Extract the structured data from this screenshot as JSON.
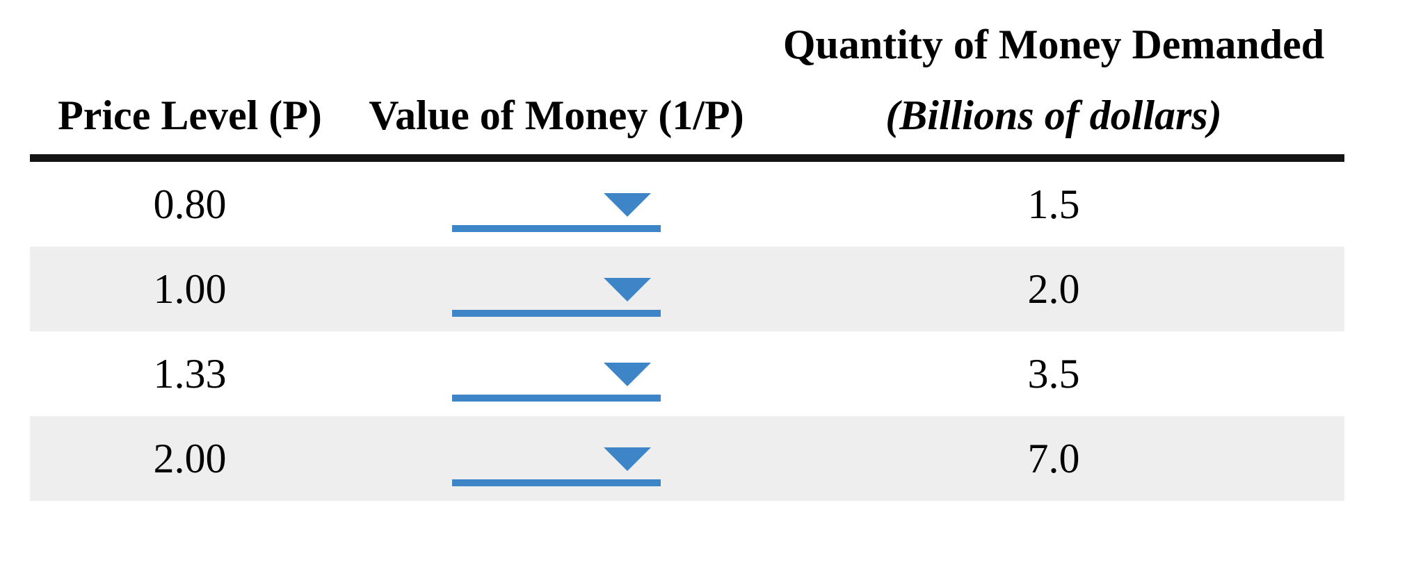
{
  "table": {
    "header": {
      "price_level": "Price Level (P)",
      "value_of_money": "Value of Money (1/P)",
      "quantity_title": "Quantity of Money Demanded",
      "quantity_subtitle": "(Billions of dollars)"
    },
    "rows": [
      {
        "price_level": "0.80",
        "quantity": "1.5"
      },
      {
        "price_level": "1.00",
        "quantity": "2.0"
      },
      {
        "price_level": "1.33",
        "quantity": "3.5"
      },
      {
        "price_level": "2.00",
        "quantity": "7.0"
      }
    ],
    "colors": {
      "accent_blue": "#3d85c6",
      "row_stripe": "#eeeeee",
      "header_rule": "#141414"
    }
  }
}
